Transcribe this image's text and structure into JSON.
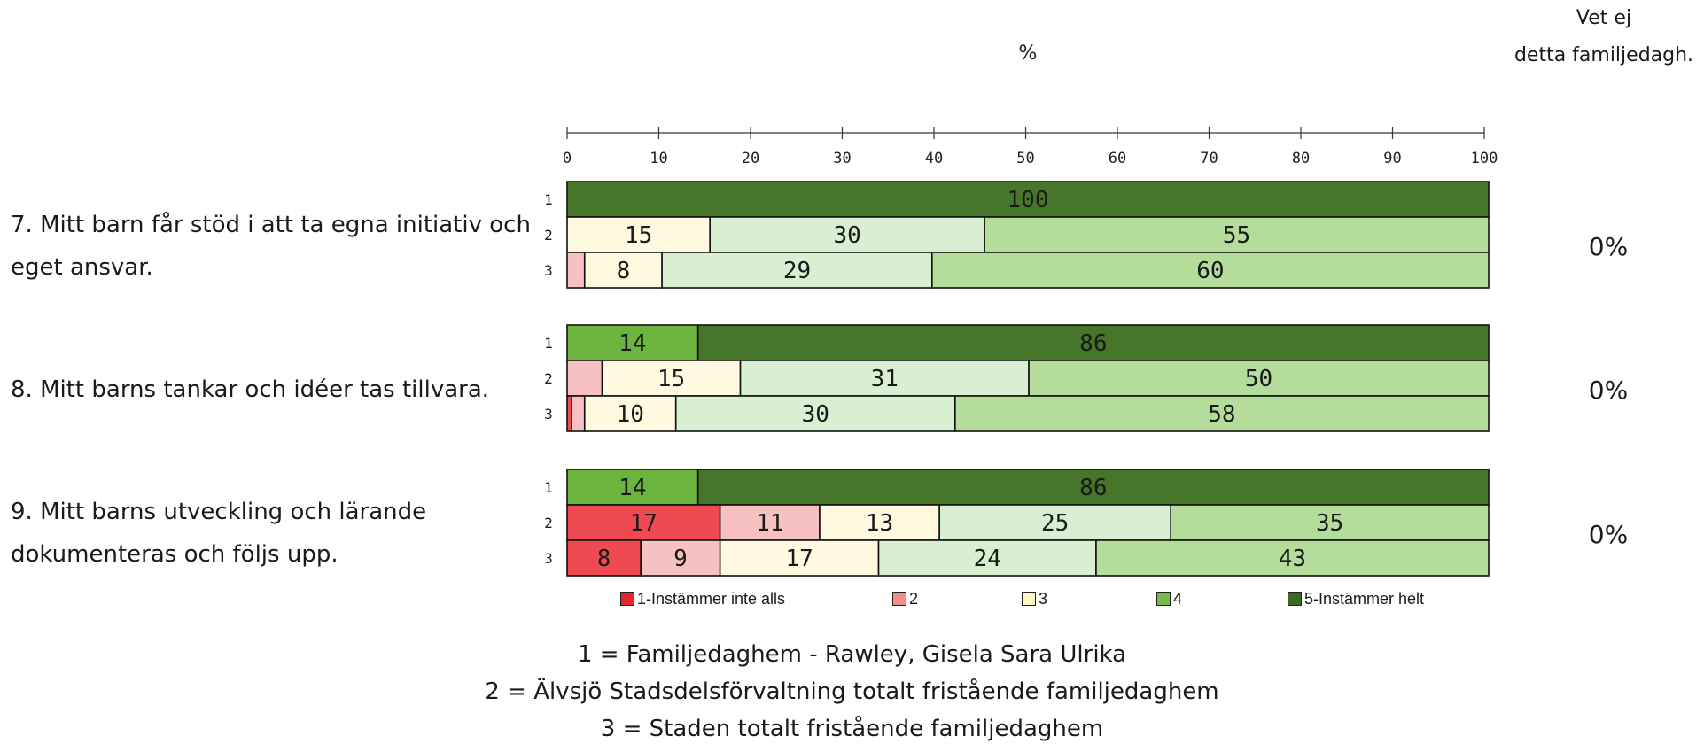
{
  "header": {
    "percent_label": "%",
    "dontknow_label_line1": "Vet ej",
    "dontknow_label_line2": "detta familjedagh."
  },
  "chart_data": {
    "type": "bar",
    "orientation": "horizontal-stacked",
    "xlim": [
      0,
      100
    ],
    "x_ticks": [
      0,
      10,
      20,
      30,
      40,
      50,
      60,
      70,
      80,
      90,
      100
    ],
    "legend": [
      "1-Instämmer inte alls",
      "2",
      "3",
      "4",
      "5-Instämmer helt"
    ],
    "legend_placement": "bottom",
    "colors": [
      "#ef4a52",
      "#f7c1c1",
      "#fffadf",
      "#d9efd2",
      "#b4dc9a",
      "#6bb53f",
      "#45762a"
    ],
    "questions": [
      {
        "label": "7. Mitt barn får stöd i att ta egna initiativ och eget ansvar.",
        "dont_know": "0%",
        "rows": [
          {
            "group": "1",
            "segments": [
              {
                "cat": 6,
                "value": 100,
                "label": "100"
              }
            ]
          },
          {
            "group": "2",
            "segments": [
              {
                "cat": 2,
                "value": 15.5,
                "label": "15"
              },
              {
                "cat": 3,
                "value": 29.8,
                "label": "30"
              },
              {
                "cat": 4,
                "value": 54.7,
                "label": "55"
              }
            ]
          },
          {
            "group": "3",
            "segments": [
              {
                "cat": 1,
                "value": 1.9,
                "label": ""
              },
              {
                "cat": 2,
                "value": 8.4,
                "label": "8"
              },
              {
                "cat": 3,
                "value": 29.3,
                "label": "29"
              },
              {
                "cat": 4,
                "value": 60.4,
                "label": "60"
              }
            ]
          }
        ]
      },
      {
        "label": "8. Mitt barns tankar och idéer tas tillvara.",
        "dont_know": "0%",
        "rows": [
          {
            "group": "1",
            "segments": [
              {
                "cat": 5,
                "value": 14.2,
                "label": "14"
              },
              {
                "cat": 6,
                "value": 85.8,
                "label": "86"
              }
            ]
          },
          {
            "group": "2",
            "segments": [
              {
                "cat": 1,
                "value": 3.8,
                "label": ""
              },
              {
                "cat": 2,
                "value": 15.0,
                "label": "15"
              },
              {
                "cat": 3,
                "value": 31.3,
                "label": "31"
              },
              {
                "cat": 4,
                "value": 49.9,
                "label": "50"
              }
            ]
          },
          {
            "group": "3",
            "segments": [
              {
                "cat": 0,
                "value": 0.5,
                "label": ""
              },
              {
                "cat": 1,
                "value": 1.4,
                "label": ""
              },
              {
                "cat": 2,
                "value": 9.9,
                "label": "10"
              },
              {
                "cat": 3,
                "value": 30.3,
                "label": "30"
              },
              {
                "cat": 4,
                "value": 57.9,
                "label": "58"
              }
            ]
          }
        ]
      },
      {
        "label": "9. Mitt barns utveckling och lärande dokumenteras och följs upp.",
        "dont_know": "0%",
        "rows": [
          {
            "group": "1",
            "segments": [
              {
                "cat": 5,
                "value": 14.2,
                "label": "14"
              },
              {
                "cat": 6,
                "value": 85.8,
                "label": "86"
              }
            ]
          },
          {
            "group": "2",
            "segments": [
              {
                "cat": 0,
                "value": 16.6,
                "label": "17"
              },
              {
                "cat": 1,
                "value": 10.8,
                "label": "11"
              },
              {
                "cat": 2,
                "value": 13.0,
                "label": "13"
              },
              {
                "cat": 3,
                "value": 25.1,
                "label": "25"
              },
              {
                "cat": 4,
                "value": 34.5,
                "label": "35"
              }
            ]
          },
          {
            "group": "3",
            "segments": [
              {
                "cat": 0,
                "value": 8.0,
                "label": "8"
              },
              {
                "cat": 1,
                "value": 8.6,
                "label": "9"
              },
              {
                "cat": 2,
                "value": 17.2,
                "label": "17"
              },
              {
                "cat": 3,
                "value": 23.6,
                "label": "24"
              },
              {
                "cat": 4,
                "value": 42.6,
                "label": "43"
              }
            ]
          }
        ]
      }
    ]
  },
  "legend_colors": [
    "#e2262c",
    "#f08d8f",
    "#fdf7c2",
    "#77b94a",
    "#3c6a24"
  ],
  "footnotes": [
    "1 = Familjedaghem - Rawley, Gisela Sara Ulrika",
    "2 = Älvsjö Stadsdelsförvaltning totalt fristående familjedaghem",
    "3 = Staden totalt fristående familjedaghem"
  ]
}
